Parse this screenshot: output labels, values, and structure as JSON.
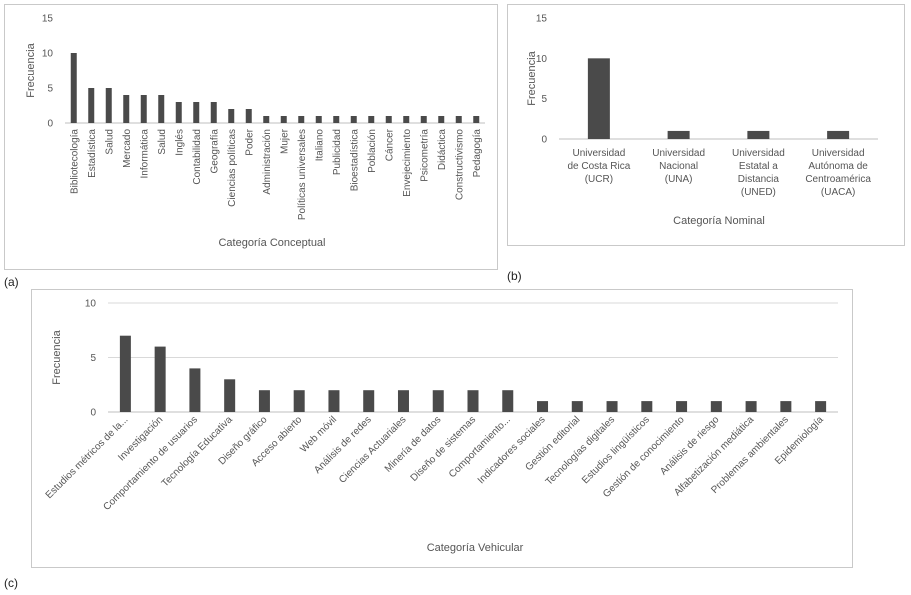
{
  "panels": {
    "a": {
      "letter": "(a)"
    },
    "b": {
      "letter": "(b)"
    },
    "c": {
      "letter": "(c)"
    }
  },
  "colors": {
    "bar": "#4a4a4a",
    "grid": "#d9d9d9",
    "text": "#555555",
    "frame": "#c9c9c9"
  },
  "chart_data": [
    {
      "id": "a",
      "type": "bar",
      "xlabel": "Categoría Conceptual",
      "ylabel": "Frecuencia",
      "ylim": [
        0,
        15
      ],
      "yticks": [
        "0",
        "5",
        "10",
        "15"
      ],
      "grid": false,
      "categories": [
        "Bibliotecología",
        "Estadística",
        "Salud",
        "Mercado",
        "Informática",
        "Salud",
        "Inglés",
        "Contabilidad",
        "Geografía",
        "Ciencias políticas",
        "Poder",
        "Administración",
        "Mujer",
        "Políticas universales",
        "Italiano",
        "Publicidad",
        "Bioestadística",
        "Población",
        "Cáncer",
        "Envejecimiento",
        "Psicometría",
        "Didáctica",
        "Constructivismo",
        "Pedagogía"
      ],
      "values": [
        10,
        5,
        5,
        4,
        4,
        4,
        3,
        3,
        3,
        2,
        2,
        1,
        1,
        1,
        1,
        1,
        1,
        1,
        1,
        1,
        1,
        1,
        1,
        1
      ]
    },
    {
      "id": "b",
      "type": "bar",
      "xlabel": "Categoría Nominal",
      "ylabel": "Frecuencia",
      "ylim": [
        0,
        15
      ],
      "yticks": [
        "0",
        "5",
        "10",
        "15"
      ],
      "grid": false,
      "categories": [
        [
          "Universidad",
          "de Costa Rica",
          "(UCR)"
        ],
        [
          "Universidad",
          "Nacional",
          "(UNA)"
        ],
        [
          "Universidad",
          "Estatal a",
          "Distancia",
          "(UNED)"
        ],
        [
          "Universidad",
          "Autónoma de",
          "Centroamérica",
          "(UACA)"
        ]
      ],
      "values": [
        10,
        1,
        1,
        1
      ]
    },
    {
      "id": "c",
      "type": "bar",
      "xlabel": "Categoría Vehicular",
      "ylabel": "Frecuencia",
      "ylim": [
        0,
        10
      ],
      "yticks": [
        "0",
        "5",
        "10"
      ],
      "grid": true,
      "categories": [
        "Estudios métricos de la...",
        "Investigación",
        "Comportamiento de usuarios",
        "Tecnología Educativa",
        "Diseño gráfico",
        "Acceso abierto",
        "Web móvil",
        "Análisis de redes",
        "Ciencias Actuariales",
        "Minería de datos",
        "Diseño de sistemas",
        "Comportamiento...",
        "Indicadores sociales",
        "Gestión editorial",
        "Tecnologías digitales",
        "Estudios lingüísticos",
        "Gestión de conocimiento",
        "Análisis de riesgo",
        "Alfabetización mediática",
        "Problemas ambientales",
        "Epidemiología"
      ],
      "values": [
        7,
        6,
        4,
        3,
        2,
        2,
        2,
        2,
        2,
        2,
        2,
        2,
        1,
        1,
        1,
        1,
        1,
        1,
        1,
        1,
        1
      ]
    }
  ]
}
